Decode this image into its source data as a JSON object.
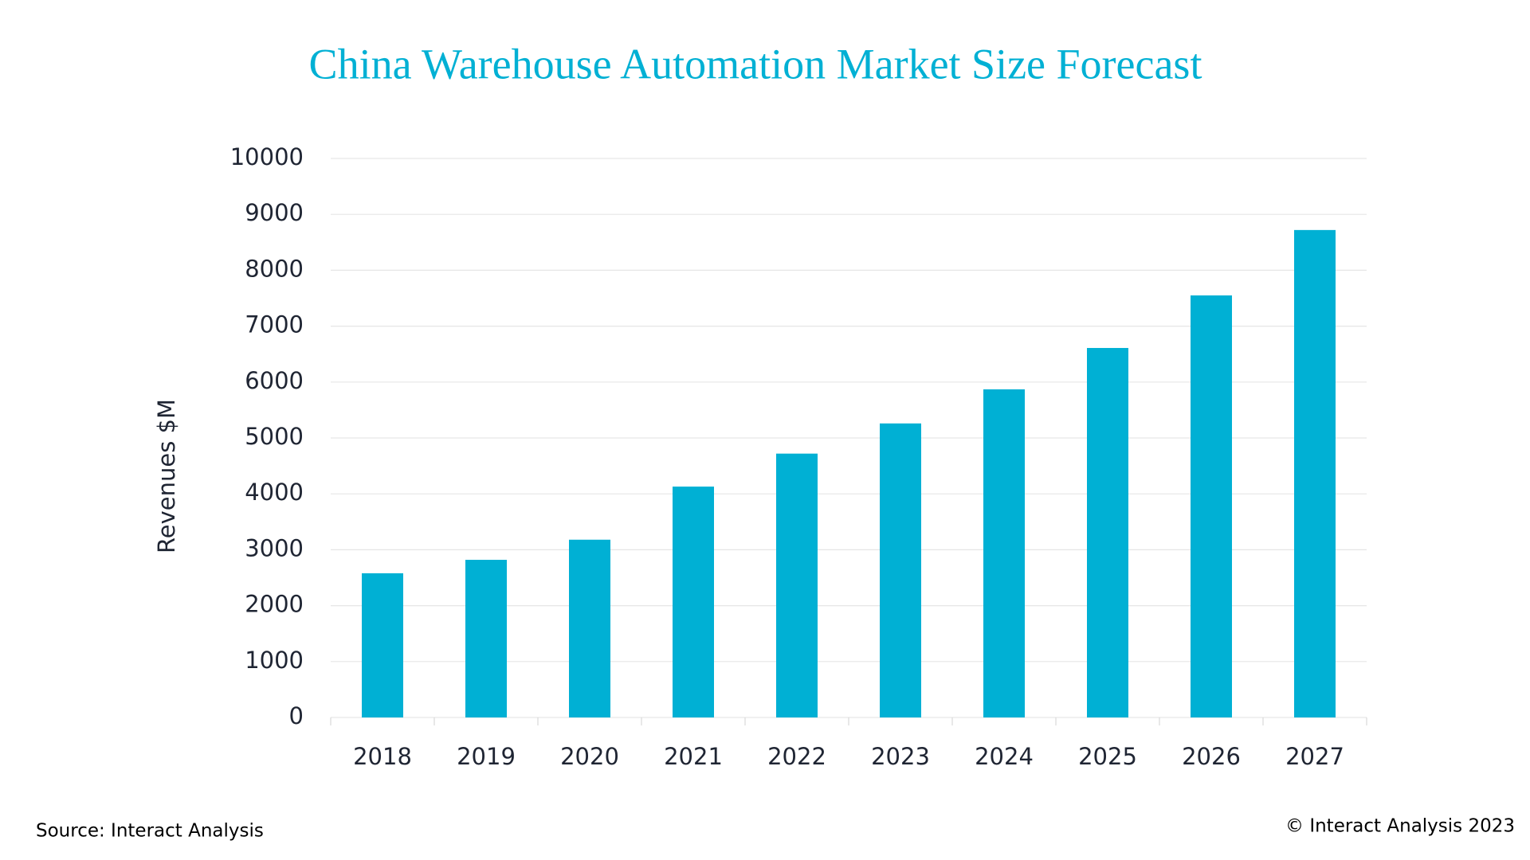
{
  "chart_data": {
    "type": "bar",
    "title": "China Warehouse Automation Market Size Forecast",
    "y_label": "Revenues $M",
    "source": "Source: Interact Analysis",
    "copyright": "© Interact Analysis 2023",
    "categories": [
      "2018",
      "2019",
      "2020",
      "2021",
      "2022",
      "2023",
      "2024",
      "2025",
      "2026",
      "2027"
    ],
    "values": [
      2580,
      2820,
      3180,
      4130,
      4720,
      5260,
      5870,
      6610,
      7550,
      8720
    ],
    "color": "#00b0d4",
    "ylim": [
      0,
      10000
    ],
    "yticks": [
      0,
      1000,
      2000,
      3000,
      4000,
      5000,
      6000,
      7000,
      8000,
      9000,
      10000
    ],
    "grid": true
  }
}
